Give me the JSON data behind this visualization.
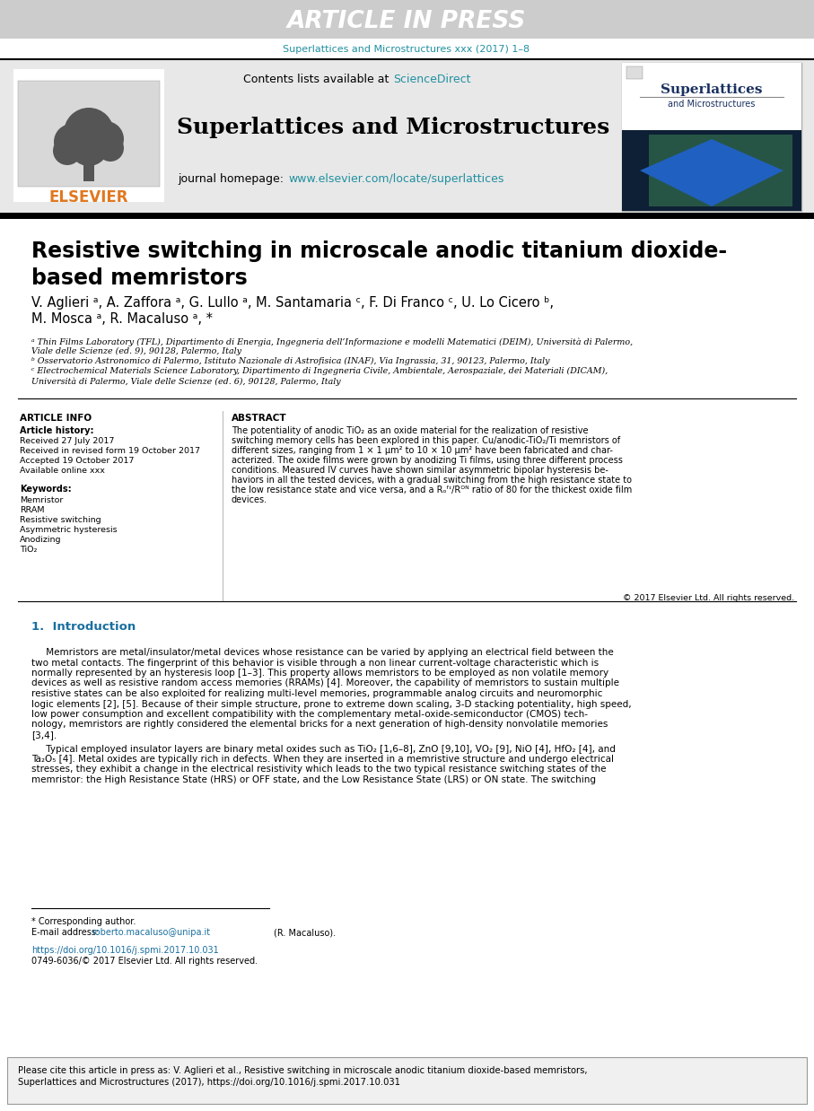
{
  "article_in_press_text": "ARTICLE IN PRESS",
  "article_in_press_bg": "#cccccc",
  "journal_ref_text": "Superlattices and Microstructures xxx (2017) 1–8",
  "journal_ref_color": "#2090a0",
  "contents_text": "Contents lists available at",
  "sciencedirect_text": "ScienceDirect",
  "sciencedirect_color": "#2090a0",
  "journal_name_text": "Superlattices and Microstructures",
  "homepage_label": "journal homepage:",
  "homepage_url": "www.elsevier.com/locate/superlattices",
  "homepage_color": "#2090a0",
  "elsevier_color": "#e07820",
  "header_bg": "#e8e8e8",
  "article_title": "Resistive switching in microscale anodic titanium dioxide-\nbased memristors",
  "authors_line1": "V. Aglieri ᵃ, A. Zaffora ᵃ, G. Lullo ᵃ, M. Santamaria ᶜ, F. Di Franco ᶜ, U. Lo Cicero ᵇ,",
  "authors_line2": "M. Mosca ᵃ, R. Macaluso ᵃ, *",
  "affil_a": "ᵃ Thin Films Laboratory (TFL), Dipartimento di Energia, Ingegneria dell’Informazione e modelli Matematici (DEIM), Università di Palermo,",
  "affil_a2": "Viale delle Scienze (ed. 9), 90128, Palermo, Italy",
  "affil_b": "ᵇ Osservatorio Astronomico di Palermo, Istituto Nazionale di Astrofisica (INAF), Via Ingrassia, 31, 90123, Palermo, Italy",
  "affil_c": "ᶜ Electrochemical Materials Science Laboratory, Dipartimento di Ingegneria Civile, Ambientale, Aerospaziale, dei Materiali (DICAM),",
  "affil_c2": "Università di Palermo, Viale delle Scienze (ed. 6), 90128, Palermo, Italy",
  "article_info_title": "ARTICLE INFO",
  "article_history_title": "Article history:",
  "received_text": "Received 27 July 2017",
  "revised_text": "Received in revised form 19 October 2017",
  "accepted_text": "Accepted 19 October 2017",
  "available_text": "Available online xxx",
  "keywords_title": "Keywords:",
  "keywords": [
    "Memristor",
    "RRAM",
    "Resistive switching",
    "Asymmetric hysteresis",
    "Anodizing",
    "TiO₂"
  ],
  "abstract_title": "ABSTRACT",
  "abstract_line1": "The potentiality of anodic TiO₂ as an oxide material for the realization of resistive",
  "abstract_line2": "switching memory cells has been explored in this paper. Cu/anodic-TiO₂/Ti memristors of",
  "abstract_line3": "different sizes, ranging from 1 × 1 μm² to 10 × 10 μm² have been fabricated and char-",
  "abstract_line4": "acterized. The oxide films were grown by anodizing Ti films, using three different process",
  "abstract_line5": "conditions. Measured IV curves have shown similar asymmetric bipolar hysteresis be-",
  "abstract_line6": "haviors in all the tested devices, with a gradual switching from the high resistance state to",
  "abstract_line7": "the low resistance state and vice versa, and a Rₒᶠᶦ/Rᴼᴺ ratio of 80 for the thickest oxide film",
  "abstract_line8": "devices.",
  "copyright_text": "© 2017 Elsevier Ltd. All rights reserved.",
  "section_title": "1.  Introduction",
  "intro_para1_lines": [
    "     Memristors are metal/insulator/metal devices whose resistance can be varied by applying an electrical field between the",
    "two metal contacts. The fingerprint of this behavior is visible through a non linear current-voltage characteristic which is",
    "normally represented by an hysteresis loop [1–3]. This property allows memristors to be employed as non volatile memory",
    "devices as well as resistive random access memories (RRAMs) [4]. Moreover, the capability of memristors to sustain multiple",
    "resistive states can be also exploited for realizing multi-level memories, programmable analog circuits and neuromorphic",
    "logic elements [2], [5]. Because of their simple structure, prone to extreme down scaling, 3-D stacking potentiality, high speed,",
    "low power consumption and excellent compatibility with the complementary metal-oxide-semiconductor (CMOS) tech-",
    "nology, memristors are rightly considered the elemental bricks for a next generation of high-density nonvolatile memories",
    "[3,4]."
  ],
  "intro_para2_lines": [
    "     Typical employed insulator layers are binary metal oxides such as TiO₂ [1,6–8], ZnO [9,10], VO₂ [9], NiO [4], HfO₂ [4], and",
    "Ta₂O₅ [4]. Metal oxides are typically rich in defects. When they are inserted in a memristive structure and undergo electrical",
    "stresses, they exhibit a change in the electrical resistivity which leads to the two typical resistance switching states of the",
    "memristor: the High Resistance State (HRS) or OFF state, and the Low Resistance State (LRS) or ON state. The switching"
  ],
  "corresponding_author_text": "* Corresponding author.",
  "email_label": "E-mail address:",
  "email_address": "roberto.macaluso@unipa.it",
  "email_name": "(R. Macaluso).",
  "doi_text": "https://doi.org/10.1016/j.spmi.2017.10.031",
  "issn_text": "0749-6036/© 2017 Elsevier Ltd. All rights reserved.",
  "footer_cite_line1": "Please cite this article in press as: V. Aglieri et al., Resistive switching in microscale anodic titanium dioxide-based memristors,",
  "footer_cite_line2": "Superlattices and Microstructures (2017), https://doi.org/10.1016/j.spmi.2017.10.031",
  "footer_bg": "#f0f0f0",
  "bg_color": "#ffffff",
  "link_color": "#1a6fa0",
  "section_color": "#1a6fa0"
}
